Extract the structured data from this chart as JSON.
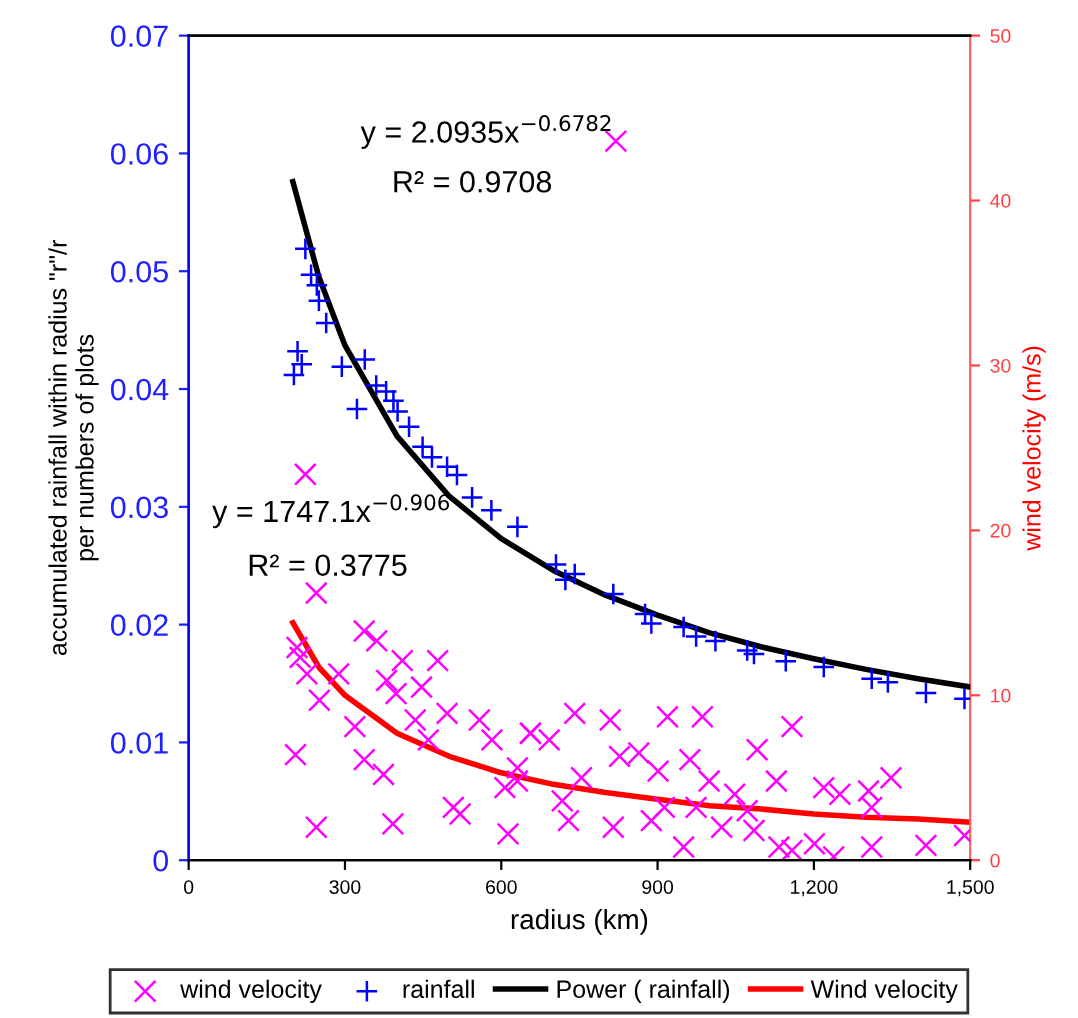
{
  "chart_data": {
    "type": "scatter",
    "xlabel": "radius (km)",
    "ylabel": "accumulated rainfall within radius \"r\"/r\nper numbers of plots",
    "y2label": "wind velocity (m/s)",
    "xlim": [
      0,
      1500
    ],
    "xticks": [
      0,
      300,
      600,
      900,
      {
        "value": 1200,
        "label": "1,200"
      },
      {
        "value": 1500,
        "label": "1,500"
      }
    ],
    "ylim": [
      0,
      0.07
    ],
    "yticks": [
      0,
      0.01,
      0.02,
      0.03,
      0.04,
      0.05,
      0.06,
      0.07
    ],
    "y2lim": [
      0,
      50
    ],
    "y2ticks": [
      0,
      10,
      20,
      30,
      40,
      50
    ],
    "grid": false,
    "legend": "bottom",
    "annotations": [
      "y = 2.0935x$^{−0.6782}$",
      "R² = 0.9708",
      "y = 1747.1x$^{−0.906}$",
      "R² = 0.3775"
    ],
    "series": [
      {
        "name": "wind velocity",
        "marker": "cross",
        "color": "#ff00ff",
        "axis": "y2",
        "x": [
          245,
          208,
          214,
          227,
          251,
          205,
          245,
          337,
          361,
          288,
          319,
          380,
          398,
          374,
          392,
          447,
          435,
          460,
          496,
          508,
          521,
          558,
          582,
          613,
          631,
          607,
          656,
          337,
          410,
          478,
          741,
          809,
          919,
          986,
          1158,
          656,
          692,
          827,
          864,
          962,
          1091,
          754,
          901,
          999,
          1048,
          1128,
          1219,
          1250,
          1305,
          1348,
          1311,
          631,
          717,
          729,
          815,
          888,
          950,
          1023,
          1085,
          1133,
          1158,
          1201,
          1238,
          1311,
          1415,
          1489,
          913,
          974,
          1072,
          820,
          224
        ],
        "values": [
          16.2,
          12.9,
          12.3,
          11.3,
          9.7,
          6.4,
          2.0,
          13.9,
          13.3,
          11.3,
          8.1,
          10.9,
          10.1,
          5.2,
          2.2,
          10.5,
          8.5,
          7.3,
          8.9,
          3.2,
          2.8,
          8.5,
          7.3,
          1.6,
          5.6,
          4.4,
          7.7,
          6.1,
          12.1,
          12.1,
          8.9,
          8.5,
          8.7,
          8.7,
          8.1,
          7.7,
          7.3,
          6.3,
          6.5,
          6.1,
          6.7,
          5.0,
          5.4,
          4.8,
          4.0,
          4.8,
          4.4,
          4.0,
          4.2,
          5.0,
          3.2,
          4.8,
          3.6,
          2.4,
          2.0,
          2.4,
          0.8,
          2.0,
          1.8,
          0.8,
          0.6,
          1.0,
          0.2,
          0.8,
          0.9,
          1.5,
          3.2,
          3.2,
          3.0,
          43.6,
          23.4
        ]
      },
      {
        "name": "rainfall",
        "marker": "plus",
        "color": "#0000ff",
        "x": [
          224,
          235,
          246,
          250,
          264,
          209,
          217,
          202,
          294,
          338,
          323,
          360,
          379,
          393,
          401,
          423,
          449,
          467,
          496,
          515,
          544,
          581,
          631,
          705,
          741,
          815,
          876,
          950,
          1011,
          1072,
          1146,
          1219,
          1311,
          1342,
          1415,
          1489,
          723,
          888,
          974,
          1085
        ],
        "values": [
          0.0519,
          0.0497,
          0.0488,
          0.0475,
          0.0456,
          0.0432,
          0.0421,
          0.0412,
          0.0419,
          0.0425,
          0.0383,
          0.0403,
          0.0398,
          0.039,
          0.0381,
          0.0368,
          0.0351,
          0.0342,
          0.0334,
          0.0327,
          0.0308,
          0.0297,
          0.0283,
          0.0251,
          0.0243,
          0.0226,
          0.0209,
          0.0198,
          0.0186,
          0.0178,
          0.0169,
          0.0164,
          0.0154,
          0.0151,
          0.0142,
          0.0137,
          0.0238,
          0.0201,
          0.019,
          0.0175
        ]
      },
      {
        "name": "Power ( rainfall)",
        "type": "line",
        "color": "#000000",
        "x": [
          200,
          250,
          300,
          400,
          500,
          600,
          700,
          800,
          900,
          1000,
          1100,
          1200,
          1300,
          1400,
          1500
        ],
        "values": [
          0.0576,
          0.0495,
          0.0437,
          0.036,
          0.0309,
          0.0273,
          0.0246,
          0.0225,
          0.0208,
          0.0193,
          0.0181,
          0.0171,
          0.0162,
          0.0154,
          0.0147
        ]
      },
      {
        "name": "Wind velocity",
        "type": "line",
        "color": "#ff0000",
        "axis": "y2",
        "x": [
          200,
          250,
          300,
          400,
          500,
          600,
          700,
          800,
          900,
          1000,
          1100,
          1200,
          1300,
          1400,
          1500
        ],
        "values": [
          14.4,
          11.7,
          10.0,
          7.7,
          6.3,
          5.3,
          4.6,
          4.1,
          3.7,
          3.3,
          3.1,
          2.8,
          2.6,
          2.5,
          2.3
        ]
      }
    ]
  }
}
